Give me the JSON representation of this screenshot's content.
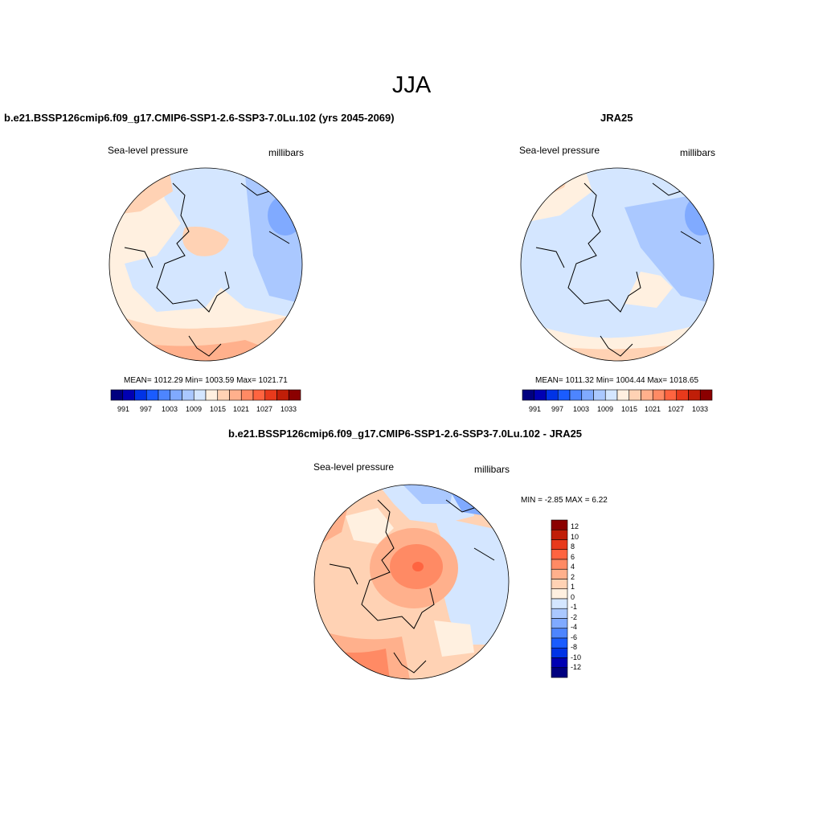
{
  "figure": {
    "title": "JJA"
  },
  "colors": {
    "palette": [
      "#00007f",
      "#0000b3",
      "#0033e6",
      "#1a5cff",
      "#4d85ff",
      "#80aaff",
      "#aac8ff",
      "#d4e6ff",
      "#fff0e0",
      "#ffd2b4",
      "#ffb08c",
      "#ff8a64",
      "#ff6440",
      "#e83a1c",
      "#c01e08",
      "#8b0000"
    ],
    "coast": "#000000"
  },
  "panels": {
    "model": {
      "title": "b.e21.BSSP126cmip6.f09_g17.CMIP6-SSP1-2.6-SSP3-7.0Lu.102 (yrs 2045-2069)",
      "variable": "Sea-level pressure",
      "units": "millibars",
      "stats": "MEAN= 1012.29  Min= 1003.59  Max= 1021.71",
      "colorbar_ticks": [
        "991",
        "997",
        "1003",
        "1009",
        "1015",
        "1021",
        "1027",
        "1033"
      ]
    },
    "obs": {
      "title": "JRA25",
      "variable": "Sea-level pressure",
      "units": "millibars",
      "stats": "MEAN= 1011.32  Min= 1004.44  Max= 1018.65",
      "colorbar_ticks": [
        "991",
        "997",
        "1003",
        "1009",
        "1015",
        "1021",
        "1027",
        "1033"
      ]
    },
    "diff": {
      "title": "b.e21.BSSP126cmip6.f09_g17.CMIP6-SSP1-2.6-SSP3-7.0Lu.102 - JRA25",
      "variable": "Sea-level pressure",
      "units": "millibars",
      "stats": "MIN =  -2.85 MAX =   6.22",
      "colorbar_ticks": [
        "12",
        "10",
        "8",
        "6",
        "4",
        "2",
        "1",
        "0",
        "-1",
        "-2",
        "-4",
        "-6",
        "-8",
        "-10",
        "-12"
      ]
    }
  }
}
